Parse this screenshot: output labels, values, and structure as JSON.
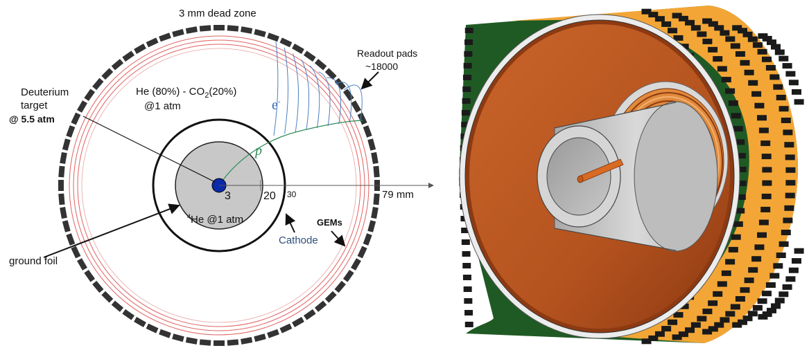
{
  "left_diagram": {
    "labels": {
      "dead_zone": "3 mm dead zone",
      "readout_pads": "Readout pads",
      "readout_pads_count": "~18000",
      "gas_mix_a": "He (80%) - CO",
      "gas_mix_a_sub": "2",
      "gas_mix_b": "(20%)",
      "gas_pressure": "@1 atm",
      "target_line1": "Deuterium",
      "target_line2": "target",
      "target_pressure": "@ 5.5 atm",
      "electron_symbol": "e",
      "electron_charge": "-",
      "proton_symbol": "p",
      "radius_3": "3",
      "radius_20": "20",
      "radius_30": "30",
      "radius_79": "79 mm",
      "helium_sup": "4",
      "helium_text": "He @1 atm",
      "cathode": "Cathode",
      "gems": "GEMs",
      "ground_foil": "ground foil"
    },
    "colors": {
      "pads": "#333333",
      "gem_rings": "#e06060",
      "electron_tracks": "#4a7fc0",
      "proton_track": "#2e8b57",
      "target_dot": "#0a2aa8",
      "inner_fill": "#c8c8c8"
    }
  },
  "right_render": {
    "colors": {
      "copper": "#b5531f",
      "copper_dark": "#7a3210",
      "green_pcb": "#1f5a24",
      "yellow_pads": "#f3a636",
      "grey_tube": "#c4c4c4",
      "target_rod": "#d86a22"
    }
  }
}
